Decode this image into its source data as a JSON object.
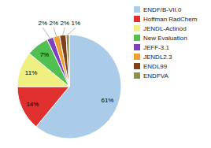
{
  "chart_data": {
    "type": "pie",
    "categories": [
      "ENDF/B-VII.0",
      "Hoffman RadChem",
      "JENDL-Actinod",
      "New Evaluation",
      "JEFF-3.1",
      "JENDL2.3",
      "ENDL99",
      "ENDFVA"
    ],
    "values": [
      61,
      14,
      11,
      7,
      2,
      2,
      2,
      1
    ],
    "value_labels": [
      "61%",
      "14%",
      "11%",
      "7%",
      "2%",
      "2%",
      "2%",
      "1%"
    ],
    "colors": [
      "#aacce8",
      "#e03030",
      "#f0f080",
      "#50c050",
      "#8040c0",
      "#f0a030",
      "#804020",
      "#909050"
    ],
    "data_labels": true,
    "legend": "upper right"
  }
}
